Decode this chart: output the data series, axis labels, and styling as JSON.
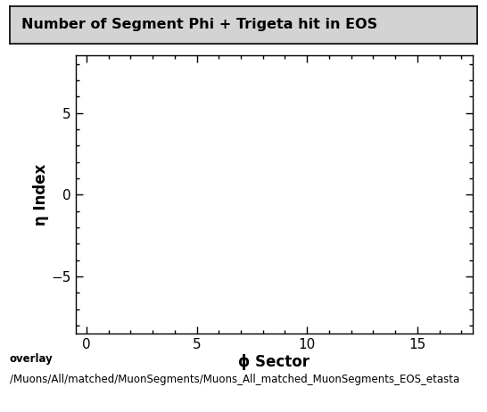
{
  "title": "Number of Segment Phi + Trigeta hit in EOS",
  "xlabel": "ϕ Sector",
  "ylabel": "η Index",
  "xlim": [
    -0.5,
    17.5
  ],
  "ylim": [
    -8.5,
    8.5
  ],
  "xticks": [
    0,
    5,
    10,
    15
  ],
  "yticks": [
    -5,
    0,
    5
  ],
  "caption_line1": "overlay",
  "caption_line2": "/Muons/All/matched/MuonSegments/Muons_All_matched_MuonSegments_EOS_etasta",
  "background_color": "#ffffff",
  "title_box_color": "#d3d3d3",
  "title_fontsize": 11.5,
  "axis_label_fontsize": 12,
  "tick_fontsize": 11,
  "caption_fontsize": 8.5
}
